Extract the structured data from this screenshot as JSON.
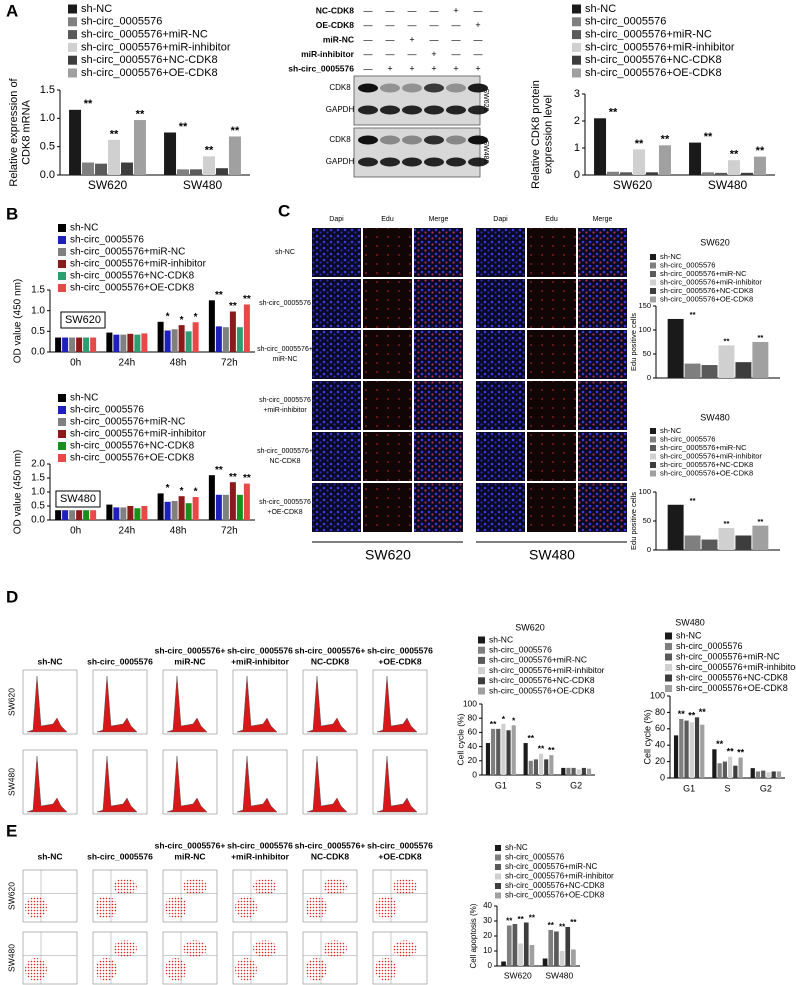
{
  "panel_labels": [
    "A",
    "B",
    "C",
    "D",
    "E"
  ],
  "blot": {
    "rows": [
      {
        "label": "NC-CDK8",
        "marks": [
          "—",
          "—",
          "—",
          "—",
          "+",
          "—"
        ]
      },
      {
        "label": "OE-CDK8",
        "marks": [
          "—",
          "—",
          "—",
          "—",
          "—",
          "+"
        ]
      },
      {
        "label": "miR-NC",
        "marks": [
          "—",
          "—",
          "+",
          "—",
          "—",
          "—"
        ]
      },
      {
        "label": "miR-inhibitor",
        "marks": [
          "—",
          "—",
          "—",
          "+",
          "—",
          "—"
        ]
      },
      {
        "label": "sh-circ_0005576",
        "marks": [
          "—",
          "+",
          "+",
          "+",
          "+",
          "+"
        ]
      }
    ],
    "bands": [
      "CDK8",
      "GAPDH",
      "CDK8",
      "GAPDH"
    ],
    "cell_lines": [
      "SW620",
      "SW480"
    ]
  },
  "edu": {
    "columns": [
      "Dapi",
      "Edu",
      "Merge",
      "Dapi",
      "Edu",
      "Merge"
    ],
    "rows": [
      [
        "sh-NC"
      ],
      [
        "sh-circ_0005576"
      ],
      [
        "sh-circ_0005576+",
        "miR-NC"
      ],
      [
        "sh-circ_0005576",
        "+miR-inhibitor"
      ],
      [
        "sh-circ_0005576+",
        "NC-CDK8"
      ],
      [
        "sh-circ_0005576",
        "+OE-CDK8"
      ]
    ],
    "cell_lines": [
      "SW620",
      "SW480"
    ]
  },
  "cycle": {
    "columns": [
      [
        "sh-NC"
      ],
      [
        "sh-circ_0005576"
      ],
      [
        "sh-circ_0005576+",
        "miR-NC"
      ],
      [
        "sh-circ_0005576",
        "+miR-inhibitor"
      ],
      [
        "sh-circ_0005576+",
        "NC-CDK8"
      ],
      [
        "sh-circ_0005576",
        "+OE-CDK8"
      ]
    ],
    "rows": [
      "SW620",
      "SW480"
    ]
  },
  "apoptosis": {
    "columns": [
      [
        "sh-NC"
      ],
      [
        "sh-circ_0005576"
      ],
      [
        "sh-circ_0005576+",
        "miR-NC"
      ],
      [
        "sh-circ_0005576",
        "+miR-inhibitor"
      ],
      [
        "sh-circ_0005576+",
        "NC-CDK8"
      ],
      [
        "sh-circ_0005576",
        "+OE-CDK8"
      ]
    ],
    "rows": [
      "SW620",
      "SW480"
    ]
  },
  "chart_data": [
    {
      "type": "bar",
      "ylabel": [
        "Relative expression of",
        "CDK8 mRNA"
      ],
      "categories": [
        "SW620",
        "SW480"
      ],
      "series": [
        {
          "name": "sh-NC",
          "color": "#1a1a1a",
          "values": [
            1.15,
            0.75
          ]
        },
        {
          "name": "sh-circ_0005576",
          "color": "#7f7f7f",
          "values": [
            0.22,
            0.1
          ]
        },
        {
          "name": "sh-circ_0005576+miR-NC",
          "color": "#5a5a5a",
          "values": [
            0.2,
            0.1
          ]
        },
        {
          "name": "sh-circ_0005576+miR-inhibitor",
          "color": "#d0d0d0",
          "values": [
            0.62,
            0.33
          ]
        },
        {
          "name": "sh-circ_0005576+NC-CDK8",
          "color": "#3d3d3d",
          "values": [
            0.22,
            0.12
          ]
        },
        {
          "name": "sh-circ_0005576+OE-CDK8",
          "color": "#a0a0a0",
          "values": [
            0.97,
            0.68
          ]
        }
      ],
      "ylim": [
        0,
        1.5
      ],
      "yticks": [
        {
          "value": 0,
          "label": "0.0"
        },
        {
          "value": 0.5,
          "label": "0.5"
        },
        {
          "value": 1,
          "label": "1.0"
        },
        {
          "value": 1.5,
          "label": "1.5"
        }
      ],
      "annotations": [
        {
          "text": "**",
          "category": 0,
          "series": 1
        },
        {
          "text": "**",
          "category": 0,
          "series": 3
        },
        {
          "text": "**",
          "category": 0,
          "series": 5
        },
        {
          "text": "**",
          "category": 1,
          "series": 1
        },
        {
          "text": "**",
          "category": 1,
          "series": 3
        },
        {
          "text": "**",
          "category": 1,
          "series": 5
        }
      ]
    },
    {
      "type": "bar",
      "ylabel": [
        "Relative CDK8 protein",
        "expression level"
      ],
      "categories": [
        "SW620",
        "SW480"
      ],
      "series": [
        {
          "name": "sh-NC",
          "color": "#1a1a1a",
          "values": [
            2.1,
            1.2
          ]
        },
        {
          "name": "sh-circ_0005576",
          "color": "#7f7f7f",
          "values": [
            0.12,
            0.1
          ]
        },
        {
          "name": "sh-circ_0005576+miR-NC",
          "color": "#5a5a5a",
          "values": [
            0.1,
            0.08
          ]
        },
        {
          "name": "sh-circ_0005576+miR-inhibitor",
          "color": "#d0d0d0",
          "values": [
            0.95,
            0.55
          ]
        },
        {
          "name": "sh-circ_0005576+NC-CDK8",
          "color": "#3d3d3d",
          "values": [
            0.1,
            0.08
          ]
        },
        {
          "name": "sh-circ_0005576+OE-CDK8",
          "color": "#a0a0a0",
          "values": [
            1.1,
            0.68
          ]
        }
      ],
      "ylim": [
        0,
        3
      ],
      "yticks": [
        0,
        1,
        2,
        3
      ],
      "annotations": [
        {
          "text": "**",
          "category": 0,
          "series": 1
        },
        {
          "text": "**",
          "category": 0,
          "series": 3
        },
        {
          "text": "**",
          "category": 0,
          "series": 5
        },
        {
          "text": "**",
          "category": 1,
          "series": 1
        },
        {
          "text": "**",
          "category": 1,
          "series": 3
        },
        {
          "text": "**",
          "category": 1,
          "series": 5
        }
      ]
    },
    {
      "type": "bar",
      "title": "SW620",
      "ylabel": [
        "OD value (450 nm)"
      ],
      "categories": [
        "0h",
        "24h",
        "48h",
        "72h"
      ],
      "series": [
        {
          "name": "sh-NC",
          "color": "#000000",
          "values": [
            0.35,
            0.47,
            0.73,
            1.25
          ]
        },
        {
          "name": "sh-circ_0005576",
          "color": "#1f1fbf",
          "values": [
            0.35,
            0.42,
            0.52,
            0.62
          ]
        },
        {
          "name": "sh-circ_0005576+miR-NC",
          "color": "#808080",
          "values": [
            0.35,
            0.42,
            0.55,
            0.6
          ]
        },
        {
          "name": "sh-circ_0005576+miR-inhibitor",
          "color": "#8b1a1a",
          "values": [
            0.35,
            0.44,
            0.65,
            0.98
          ]
        },
        {
          "name": "sh-circ_0005576+NC-CDK8",
          "color": "#2e9e72",
          "values": [
            0.35,
            0.42,
            0.5,
            0.6
          ]
        },
        {
          "name": "sh-circ_0005576+OE-CDK8",
          "color": "#e94848",
          "values": [
            0.35,
            0.45,
            0.72,
            1.15
          ]
        }
      ],
      "ylim": [
        0,
        1.5
      ],
      "yticks": [
        {
          "value": 0,
          "label": "0.0"
        },
        {
          "value": 0.5,
          "label": "0.5"
        },
        {
          "value": 1,
          "label": "1.0"
        },
        {
          "value": 1.5,
          "label": "1.5"
        }
      ],
      "annotations": [
        {
          "text": "*",
          "category": 2,
          "series": 1
        },
        {
          "text": "*",
          "category": 2,
          "series": 3
        },
        {
          "text": "*",
          "category": 2,
          "series": 5
        },
        {
          "text": "**",
          "category": 3,
          "series": 1
        },
        {
          "text": "**",
          "category": 3,
          "series": 3
        },
        {
          "text": "**",
          "category": 3,
          "series": 5
        }
      ]
    },
    {
      "type": "bar",
      "title": "SW480",
      "ylabel": [
        "OD value (450 nm)"
      ],
      "categories": [
        "0h",
        "24h",
        "48h",
        "72h"
      ],
      "series": [
        {
          "name": "sh-NC",
          "color": "#000000",
          "values": [
            0.35,
            0.55,
            0.95,
            1.6
          ]
        },
        {
          "name": "sh-circ_0005576",
          "color": "#1f1fbf",
          "values": [
            0.35,
            0.45,
            0.65,
            0.9
          ]
        },
        {
          "name": "sh-circ_0005576+miR-NC",
          "color": "#808080",
          "values": [
            0.35,
            0.45,
            0.68,
            0.9
          ]
        },
        {
          "name": "sh-circ_0005576+miR-inhibitor",
          "color": "#8b1a1a",
          "values": [
            0.35,
            0.5,
            0.85,
            1.35
          ]
        },
        {
          "name": "sh-circ_0005576+NC-CDK8",
          "color": "#1a8f1a",
          "values": [
            0.35,
            0.42,
            0.6,
            0.9
          ]
        },
        {
          "name": "sh-circ_0005576+OE-CDK8",
          "color": "#e94848",
          "values": [
            0.35,
            0.5,
            0.82,
            1.3
          ]
        }
      ],
      "ylim": [
        0,
        2
      ],
      "yticks": [
        {
          "value": 0,
          "label": "0.0"
        },
        {
          "value": 0.5,
          "label": "0.5"
        },
        {
          "value": 1,
          "label": "1.0"
        },
        {
          "value": 1.5,
          "label": "1.5"
        },
        {
          "value": 2,
          "label": "2.0"
        }
      ],
      "annotations": [
        {
          "text": "*",
          "category": 2,
          "series": 1
        },
        {
          "text": "*",
          "category": 2,
          "series": 3
        },
        {
          "text": "*",
          "category": 2,
          "series": 5
        },
        {
          "text": "**",
          "category": 3,
          "series": 1
        },
        {
          "text": "**",
          "category": 3,
          "series": 3
        },
        {
          "text": "**",
          "category": 3,
          "series": 5
        }
      ]
    },
    {
      "type": "bar",
      "title": "SW620",
      "ylabel": [
        "Edu positive cells"
      ],
      "categories": [
        null
      ],
      "series": [
        {
          "name": "sh-NC",
          "color": "#1a1a1a",
          "values": [
            123
          ]
        },
        {
          "name": "sh-circ_0005576",
          "color": "#7f7f7f",
          "values": [
            30
          ]
        },
        {
          "name": "sh-circ_0005576+miR-NC",
          "color": "#5a5a5a",
          "values": [
            27
          ]
        },
        {
          "name": "sh-circ_0005576+miR-inhibitor",
          "color": "#d0d0d0",
          "values": [
            68
          ]
        },
        {
          "name": "sh-circ_0005576+NC-CDK8",
          "color": "#3d3d3d",
          "values": [
            33
          ]
        },
        {
          "name": "sh-circ_0005576+OE-CDK8",
          "color": "#a0a0a0",
          "values": [
            75
          ]
        }
      ],
      "ylim": [
        0,
        150
      ],
      "yticks": [
        0,
        50,
        100,
        150
      ],
      "annotations": [
        {
          "text": "**",
          "category": 0,
          "series": 1
        },
        {
          "text": "**",
          "category": 0,
          "series": 3
        },
        {
          "text": "**",
          "category": 0,
          "series": 5
        }
      ]
    },
    {
      "type": "bar",
      "title": "SW480",
      "ylabel": [
        "Edu positive cells"
      ],
      "categories": [
        null
      ],
      "series": [
        {
          "name": "sh-NC",
          "color": "#1a1a1a",
          "values": [
            78
          ]
        },
        {
          "name": "sh-circ_0005576",
          "color": "#7f7f7f",
          "values": [
            25
          ]
        },
        {
          "name": "sh-circ_0005576+miR-NC",
          "color": "#5a5a5a",
          "values": [
            18
          ]
        },
        {
          "name": "sh-circ_0005576+miR-inhibitor",
          "color": "#d0d0d0",
          "values": [
            38
          ]
        },
        {
          "name": "sh-circ_0005576+NC-CDK8",
          "color": "#3d3d3d",
          "values": [
            25
          ]
        },
        {
          "name": "sh-circ_0005576+OE-CDK8",
          "color": "#a0a0a0",
          "values": [
            42
          ]
        }
      ],
      "ylim": [
        0,
        100
      ],
      "yticks": [
        0,
        50,
        100
      ],
      "annotations": [
        {
          "text": "**",
          "category": 0,
          "series": 1
        },
        {
          "text": "**",
          "category": 0,
          "series": 3
        },
        {
          "text": "**",
          "category": 0,
          "series": 5
        }
      ]
    },
    {
      "type": "bar",
      "title": "SW620",
      "ylabel": [
        "Cell cycle (%)"
      ],
      "categories": [
        "G1",
        "S",
        "G2"
      ],
      "series": [
        {
          "name": "sh-NC",
          "color": "#1a1a1a",
          "values": [
            45,
            45,
            10
          ]
        },
        {
          "name": "sh-circ_0005576",
          "color": "#7f7f7f",
          "values": [
            65,
            20,
            10
          ]
        },
        {
          "name": "sh-circ_0005576+miR-NC",
          "color": "#5a5a5a",
          "values": [
            65,
            22,
            10
          ]
        },
        {
          "name": "sh-circ_0005576+miR-inhibitor",
          "color": "#d0d0d0",
          "values": [
            72,
            30,
            8
          ]
        },
        {
          "name": "sh-circ_0005576+NC-CDK8",
          "color": "#3d3d3d",
          "values": [
            63,
            22,
            10
          ]
        },
        {
          "name": "sh-circ_0005576+OE-CDK8",
          "color": "#a0a0a0",
          "values": [
            70,
            28,
            9
          ]
        }
      ],
      "ylim": [
        0,
        100
      ],
      "yticks": [
        0,
        20,
        40,
        60,
        80,
        100
      ],
      "annotations": [
        {
          "text": "**",
          "category": 0,
          "series": 1
        },
        {
          "text": "*",
          "category": 0,
          "series": 3
        },
        {
          "text": "*",
          "category": 0,
          "series": 5
        },
        {
          "text": "**",
          "category": 1,
          "series": 1
        },
        {
          "text": "**",
          "category": 1,
          "series": 3
        },
        {
          "text": "**",
          "category": 1,
          "series": 5
        }
      ]
    },
    {
      "type": "bar",
      "title": "SW480",
      "ylabel": [
        "Cell cycle (%)"
      ],
      "categories": [
        "G1",
        "S",
        "G2"
      ],
      "series": [
        {
          "name": "sh-NC",
          "color": "#1a1a1a",
          "values": [
            52,
            35,
            12
          ]
        },
        {
          "name": "sh-circ_0005576",
          "color": "#7f7f7f",
          "values": [
            72,
            18,
            8
          ]
        },
        {
          "name": "sh-circ_0005576+miR-NC",
          "color": "#5a5a5a",
          "values": [
            70,
            20,
            9
          ]
        },
        {
          "name": "sh-circ_0005576+miR-inhibitor",
          "color": "#d0d0d0",
          "values": [
            68,
            26,
            7
          ]
        },
        {
          "name": "sh-circ_0005576+NC-CDK8",
          "color": "#3d3d3d",
          "values": [
            74,
            15,
            8
          ]
        },
        {
          "name": "sh-circ_0005576+OE-CDK8",
          "color": "#a0a0a0",
          "values": [
            65,
            25,
            8
          ]
        }
      ],
      "ylim": [
        0,
        100
      ],
      "yticks": [
        0,
        20,
        40,
        60,
        80,
        100
      ],
      "annotations": [
        {
          "text": "**",
          "category": 0,
          "series": 1
        },
        {
          "text": "**",
          "category": 0,
          "series": 3
        },
        {
          "text": "**",
          "category": 0,
          "series": 5
        },
        {
          "text": "**",
          "category": 1,
          "series": 1
        },
        {
          "text": "**",
          "category": 1,
          "series": 3
        },
        {
          "text": "**",
          "category": 1,
          "series": 5
        }
      ]
    },
    {
      "type": "bar",
      "ylabel": [
        "Cell apoptosis (%)"
      ],
      "categories": [
        "SW620",
        "SW480"
      ],
      "series": [
        {
          "name": "sh-NC",
          "color": "#1a1a1a",
          "values": [
            3,
            5
          ]
        },
        {
          "name": "sh-circ_0005576",
          "color": "#7f7f7f",
          "values": [
            27,
            24
          ]
        },
        {
          "name": "sh-circ_0005576+miR-NC",
          "color": "#5a5a5a",
          "values": [
            28,
            23
          ]
        },
        {
          "name": "sh-circ_0005576+miR-inhibitor",
          "color": "#d0d0d0",
          "values": [
            15,
            10
          ]
        },
        {
          "name": "sh-circ_0005576+NC-CDK8",
          "color": "#3d3d3d",
          "values": [
            29,
            26
          ]
        },
        {
          "name": "sh-circ_0005576+OE-CDK8",
          "color": "#a0a0a0",
          "values": [
            14,
            11
          ]
        }
      ],
      "ylim": [
        0,
        40
      ],
      "yticks": [
        0,
        10,
        20,
        30,
        40
      ],
      "annotations": [
        {
          "text": "**",
          "category": 0,
          "series": 1
        },
        {
          "text": "**",
          "category": 0,
          "series": 3
        },
        {
          "text": "**",
          "category": 0,
          "series": 5
        },
        {
          "text": "**",
          "category": 1,
          "series": 1
        },
        {
          "text": "**",
          "category": 1,
          "series": 3
        },
        {
          "text": "**",
          "category": 1,
          "series": 5
        }
      ]
    }
  ]
}
